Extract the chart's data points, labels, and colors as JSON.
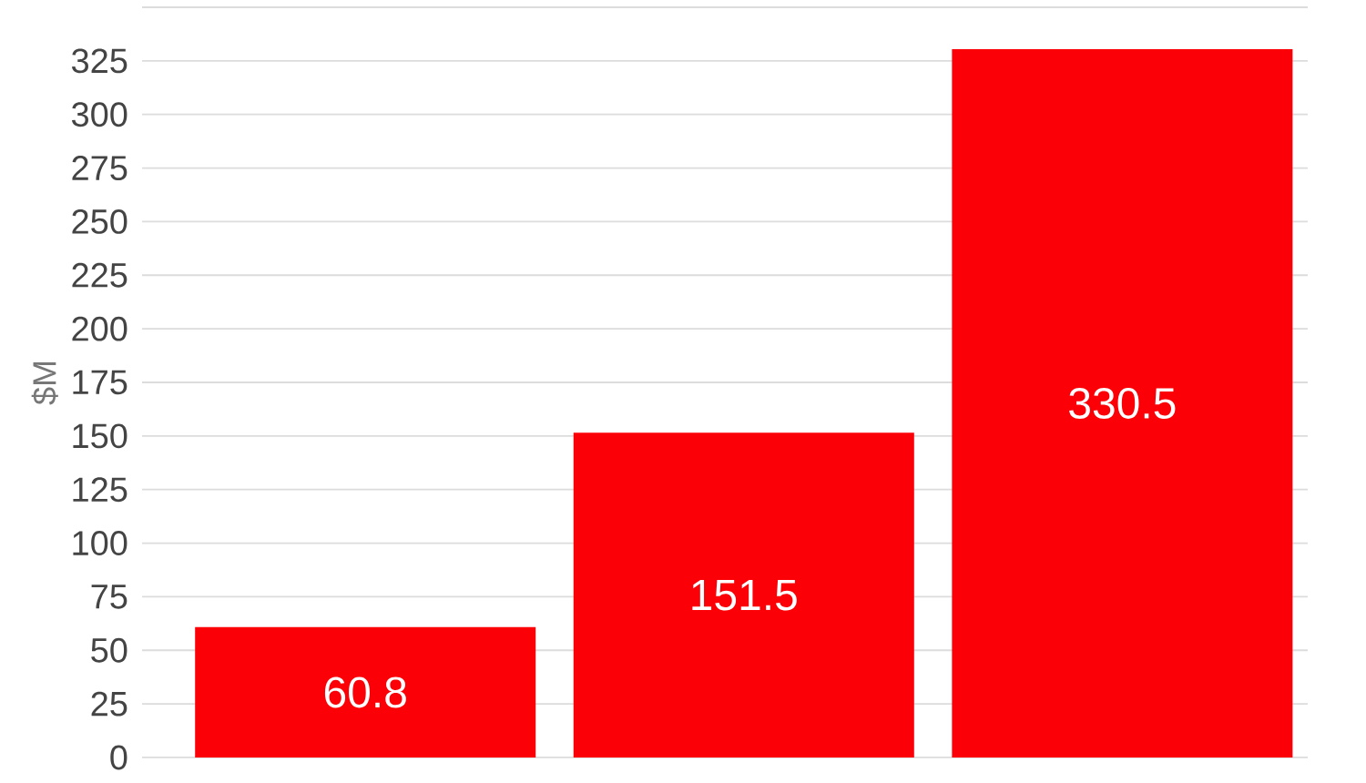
{
  "chart_data": {
    "type": "bar",
    "ylabel": "$M",
    "categories": [
      null,
      null,
      null
    ],
    "values": [
      60.8,
      151.5,
      330.5
    ],
    "color": "#fb0007",
    "ylim": [
      0,
      350
    ],
    "yticks": [
      0,
      25,
      50,
      75,
      100,
      125,
      150,
      175,
      200,
      225,
      250,
      275,
      300,
      325,
      {
        "value": 350,
        "label": null
      }
    ],
    "grid": "y",
    "data_labels": true
  }
}
